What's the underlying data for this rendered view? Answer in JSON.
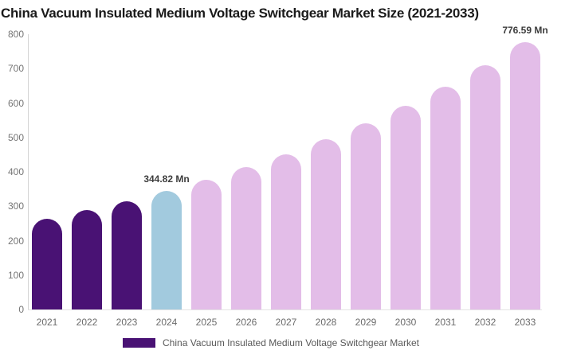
{
  "title": "China Vacuum Insulated Medium Voltage Switchgear Market Size (2021-2033)",
  "colors": {
    "historical_bar": "#491274",
    "current_bar": "#a2cade",
    "forecast_bar": "#e3bde8",
    "title_text": "#1a1a1a",
    "axis_text": "#757575",
    "data_label_text": "#3d3d3d",
    "legend_text": "#595959"
  },
  "chart_data": {
    "type": "bar",
    "title": "China Vacuum Insulated Medium Voltage Switchgear Market Size (2021-2033)",
    "xlabel": "",
    "ylabel": "",
    "unit": "Mn",
    "categories": [
      "2021",
      "2022",
      "2023",
      "2024",
      "2025",
      "2026",
      "2027",
      "2028",
      "2029",
      "2030",
      "2031",
      "2032",
      "2033"
    ],
    "values": [
      263.1,
      287.9,
      315.1,
      344.82,
      377.4,
      413.0,
      452.0,
      494.7,
      541.4,
      592.5,
      648.4,
      709.6,
      776.59
    ],
    "bar_colors": [
      "#491274",
      "#491274",
      "#491274",
      "#a2cade",
      "#e3bde8",
      "#e3bde8",
      "#e3bde8",
      "#e3bde8",
      "#e3bde8",
      "#e3bde8",
      "#e3bde8",
      "#e3bde8",
      "#e3bde8"
    ],
    "ylim": [
      0,
      800
    ],
    "yticks": [
      0,
      100,
      200,
      300,
      400,
      500,
      600,
      700,
      800
    ],
    "grid": false,
    "legend_position": "bottom",
    "data_labels": [
      {
        "index": 3,
        "text": "344.82 Mn"
      },
      {
        "index": 12,
        "text": "776.59 Mn"
      }
    ],
    "legend": {
      "swatch_color": "#491274",
      "label": "China Vacuum Insulated Medium Voltage Switchgear Market"
    }
  }
}
